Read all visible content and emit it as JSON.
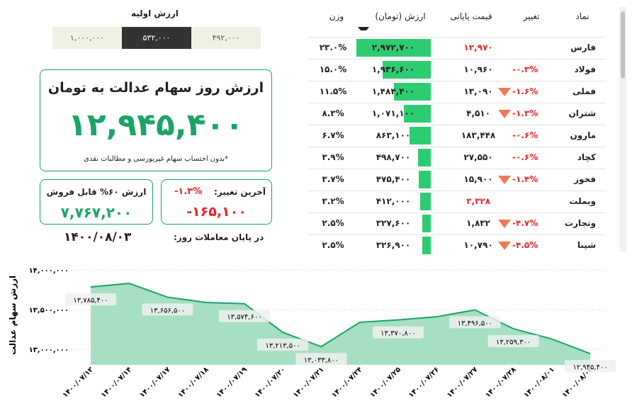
{
  "initial_value": {
    "title": "ارزش اولیه",
    "options": [
      "۱,۰۰۰,۰۰۰",
      "۵۳۲,۰۰۰",
      "۴۹۲,۰۰۰"
    ]
  },
  "summary": {
    "title": "ارزش روز سهام عدالت به تومان",
    "value": "۱۲,۹۴۵,۴۰۰",
    "note": "*بدون احتساب سهام غیربورسی و مطالبات نقدی"
  },
  "sellable": {
    "label": "ارزش ۶۰% قابل فروش",
    "value": "۷,۷۶۷,۲۰۰"
  },
  "last_change": {
    "label": "آخرین تغییر:",
    "percent": "-۱.۳%",
    "value": "-۱۶۵,۱۰۰"
  },
  "date": {
    "label": "در پایان معاملات روز:",
    "value": "۱۴۰۰/۰۸/۰۳"
  },
  "table": {
    "headers": [
      "نماد",
      "تغییر",
      "قیمت پایانی",
      "ارزش (تومان)",
      "وزن"
    ],
    "rows": [
      {
        "symbol": "فارس",
        "change": "",
        "price": "۱۲,۹۷۰",
        "price_color": "#e8262b",
        "value": "۲,۹۷۲,۷۰۰",
        "weight": "۲۳.۰%"
      },
      {
        "symbol": "فولاد",
        "change": "-۰.۳%",
        "price": "۱۰,۹۶۰",
        "value": "۱,۹۳۶,۶۰۰",
        "weight": "۱۵.۰%"
      },
      {
        "symbol": "فملی",
        "change": "-۱.۶%",
        "down_arrow": true,
        "price": "۱۳,۰۹۰",
        "value": "۱,۴۸۴,۴۰۰",
        "weight": "۱۱.۵%"
      },
      {
        "symbol": "شتران",
        "change": "-۱.۳%",
        "down_arrow": true,
        "price": "۴,۵۱۰",
        "value": "۱,۰۷۱,۱۰۰",
        "weight": "۸.۳%"
      },
      {
        "symbol": "مارون",
        "change": "-۰.۶%",
        "price": "۱۸۳,۴۴۸",
        "value": "۸۶۳,۱۰۰",
        "weight": "۶.۷%"
      },
      {
        "symbol": "کچاد",
        "change": "-۰.۶%",
        "price": "۲۷,۵۵۰",
        "value": "۴۹۸,۷۰۰",
        "weight": "۳.۹%"
      },
      {
        "symbol": "فخوز",
        "change": "-۱.۴%",
        "down_arrow": true,
        "price": "۱۵,۹۰۰",
        "value": "۴۷۵,۴۰۰",
        "weight": "۳.۷%"
      },
      {
        "symbol": "وبملت",
        "change": "",
        "price": "۳,۳۲۸",
        "price_color": "#e8262b",
        "value": "۴۱۲,۰۰۰",
        "weight": "۳.۲%"
      },
      {
        "symbol": "وتجارت",
        "change": "-۴.۷%",
        "down_arrow": true,
        "price": "۱,۸۳۲",
        "value": "۳۲۷,۶۰۰",
        "weight": "۲.۵%"
      },
      {
        "symbol": "شپنا",
        "change": "-۴.۵%",
        "down_arrow": true,
        "price": "۱۰,۷۹۰",
        "value": "۳۲۶,۹۰۰",
        "weight": "۲.۵%"
      }
    ]
  },
  "chart_data": {
    "type": "area",
    "y_label": "ارزش سهام عدالت",
    "categories": [
      "۱۴۰۰/۰۷/۱۲",
      "۱۴۰۰/۰۷/۱۴",
      "۱۴۰۰/۰۷/۱۷",
      "۱۴۰۰/۰۷/۱۸",
      "۱۴۰۰/۰۷/۱۹",
      "۱۴۰۰/۰۷/۲۰",
      "۱۴۰۰/۰۷/۲۱",
      "۱۴۰۰/۰۷/۲۴",
      "۱۴۰۰/۰۷/۲۵",
      "۱۴۰۰/۰۷/۲۶",
      "۱۴۰۰/۰۷/۲۷",
      "۱۴۰۰/۰۷/۲۸",
      "۱۴۰۰/۰۸/۰۱",
      "۱۴۰۰/۰۸/۰۳"
    ],
    "values": [
      13785400,
      13830000,
      13656500,
      13590000,
      13574600,
      13213500,
      13033800,
      13340000,
      13370800,
      13410000,
      13496500,
      13259300,
      13130000,
      12945400
    ],
    "value_labels": [
      "۱۳,۷۸۵,۴۰۰",
      null,
      "۱۳,۶۵۶,۵۰۰",
      null,
      "۱۳,۵۷۴,۶۰۰",
      "۱۳,۲۱۳,۵۰۰",
      "۱۳,۰۳۳,۸۰۰",
      null,
      "۱۳,۳۷۰,۸۰۰",
      null,
      "۱۳,۴۹۶,۵۰۰",
      "۱۳,۲۵۹,۳۰۰",
      null,
      "۱۲,۹۴۵,۴۰۰"
    ],
    "color": "#1ba466",
    "fill": "#a6dfc2",
    "ylim": [
      12850000,
      14000000
    ],
    "yticks": [
      {
        "value": 13000000,
        "label": "۱۳,۰۰۰,۰۰۰"
      },
      {
        "value": 13500000,
        "label": "۱۳,۵۰۰,۰۰۰"
      },
      {
        "value": 14000000,
        "label": "۱۴,۰۰۰,۰۰۰"
      }
    ],
    "grid": true
  }
}
